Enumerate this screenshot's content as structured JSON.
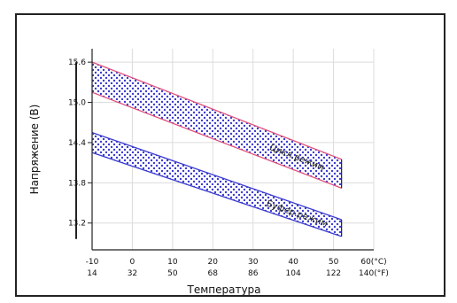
{
  "chart_data": {
    "type": "area",
    "xlabel": "Температура",
    "ylabel": "Напряжение (В)",
    "y_ticks": [
      "15.6",
      "15.0",
      "14.4",
      "13.8",
      "13.2"
    ],
    "y_tick_values": [
      15.6,
      15.0,
      14.4,
      13.8,
      13.2
    ],
    "x_ticks_c": [
      "-10",
      "0",
      "10",
      "20",
      "30",
      "40",
      "50",
      "60(°C)"
    ],
    "x_ticks_f": [
      "14",
      "32",
      "50",
      "68",
      "86",
      "104",
      "122",
      "140(°F)"
    ],
    "x_tick_values": [
      -10,
      0,
      10,
      20,
      30,
      40,
      50,
      60
    ],
    "xlim": [
      -10,
      60
    ],
    "ylim": [
      12.8,
      15.8
    ],
    "grid": true,
    "series": [
      {
        "name": "Цикл.режим",
        "color": "#e0507a",
        "x": [
          -10,
          52
        ],
        "upper": [
          15.6,
          14.15
        ],
        "lower": [
          15.15,
          13.72
        ]
      },
      {
        "name": "Буфер.режим",
        "color": "#3a3ad0",
        "x": [
          -10,
          52
        ],
        "upper": [
          14.55,
          13.25
        ],
        "lower": [
          14.25,
          13.0
        ]
      }
    ]
  }
}
